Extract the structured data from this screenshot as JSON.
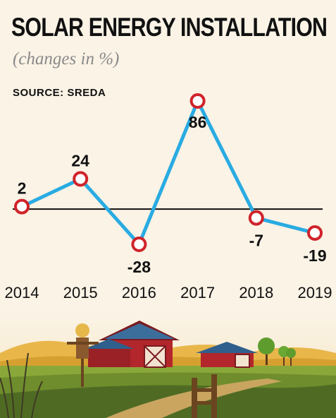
{
  "chart_data": {
    "type": "line",
    "title": "SOLAR ENERGY INSTALLATION",
    "subtitle": "(changes in %)",
    "source": "SOURCE: SREDA",
    "x": [
      "2014",
      "2015",
      "2016",
      "2017",
      "2018",
      "2019"
    ],
    "values": [
      2,
      24,
      -28,
      86,
      -7,
      -19
    ],
    "value_labels": [
      "2",
      "24",
      "-28",
      "86",
      "-7",
      "-19"
    ],
    "ylim": [
      -28,
      86
    ],
    "zero_line": true,
    "grid": false,
    "legend": "none",
    "colors": {
      "line": "#29abe2",
      "marker_stroke": "#d0232a",
      "marker_fill": "#ffffff",
      "baseline": "#111111"
    }
  }
}
